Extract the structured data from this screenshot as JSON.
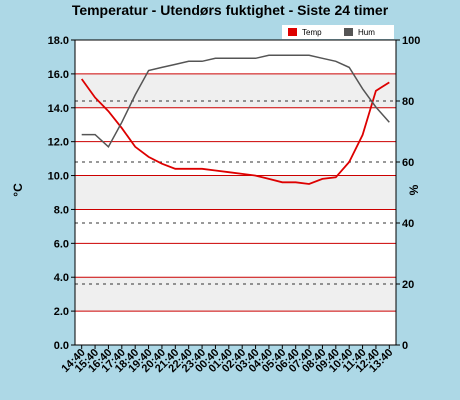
{
  "chart_data": {
    "type": "line",
    "title": "Temperatur - Utendørs fuktighet - Siste 24 timer",
    "y_left_label": "°C",
    "y_right_label": "%",
    "y_left_range": [
      0,
      18
    ],
    "y_right_range": [
      0,
      100
    ],
    "y_left_ticks": [
      "0.0",
      "2.0",
      "4.0",
      "6.0",
      "8.0",
      "10.0",
      "12.0",
      "14.0",
      "16.0",
      "18.0"
    ],
    "y_right_ticks": [
      "0",
      "20",
      "40",
      "60",
      "80",
      "100"
    ],
    "x_labels": [
      "14:40",
      "15:40",
      "16:40",
      "17:40",
      "18:40",
      "19:40",
      "20:40",
      "21:40",
      "22:40",
      "23:40",
      "00:40",
      "01:40",
      "02:40",
      "03:40",
      "04:40",
      "05:40",
      "06:40",
      "07:40",
      "08:40",
      "09:40",
      "10:40",
      "11:40",
      "12:40",
      "13:40"
    ],
    "grid": true,
    "legend_position": "top-right",
    "series": [
      {
        "name": "Temp",
        "axis": "left",
        "color": "#dd0000",
        "values": [
          15.7,
          14.6,
          13.8,
          12.8,
          11.7,
          11.1,
          10.7,
          10.4,
          10.4,
          10.4,
          10.3,
          10.2,
          10.1,
          10.0,
          9.8,
          9.6,
          9.6,
          9.5,
          9.8,
          9.9,
          10.8,
          12.4,
          15.0,
          15.5
        ]
      },
      {
        "name": "Hum",
        "axis": "right",
        "color": "#555555",
        "values": [
          69,
          69,
          65,
          73,
          82,
          90,
          91,
          92,
          93,
          93,
          94,
          94,
          94,
          94,
          95,
          95,
          95,
          95,
          94,
          93,
          91,
          84,
          78,
          73
        ]
      }
    ]
  }
}
